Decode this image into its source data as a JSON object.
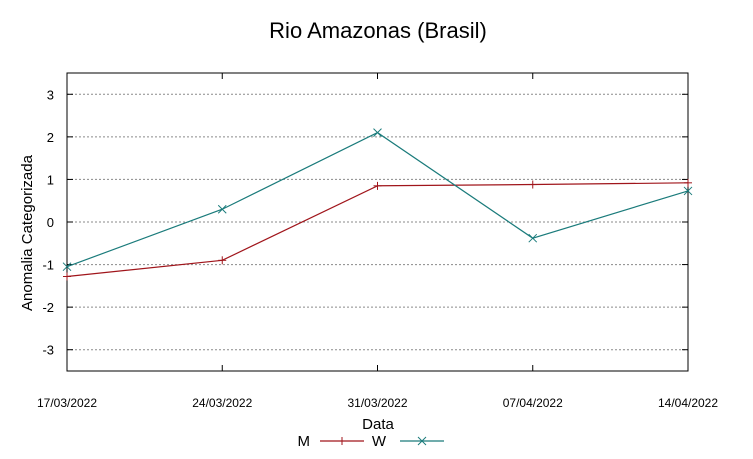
{
  "chart_data": {
    "type": "line",
    "title": "Rio Amazonas (Brasil)",
    "xlabel": "Data",
    "ylabel": "Anomalia Categorizada",
    "categories": [
      "17/03/2022",
      "24/03/2022",
      "31/03/2022",
      "07/04/2022",
      "14/04/2022"
    ],
    "ylim": [
      -3.5,
      3.5
    ],
    "yticks": [
      "-3",
      "-2",
      "-1",
      "0",
      "1",
      "2",
      "3"
    ],
    "grid": true,
    "legend_position": "bottom-center",
    "series": [
      {
        "name": "M",
        "values": [
          -1.28,
          -0.9,
          0.85,
          0.88,
          0.92
        ],
        "color": "#a0151b",
        "marker": "+"
      },
      {
        "name": "W",
        "values": [
          -1.05,
          0.3,
          2.1,
          -0.38,
          0.73
        ],
        "color": "#1a7b7b",
        "marker": "x"
      }
    ]
  }
}
